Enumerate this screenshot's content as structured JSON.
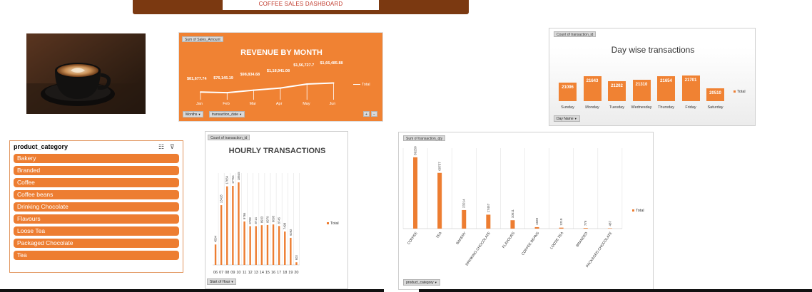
{
  "header": {
    "title": "COFFEE  SALES  DASHBOARD"
  },
  "revenue": {
    "field_tag": "Sum of Sales_Amount",
    "title": "REVENUE BY MONTH",
    "legend": "Total",
    "filter_months": "Months",
    "filter_date": "transaction_date",
    "btn_plus": "+",
    "btn_minus": "−"
  },
  "daywise": {
    "field_tag": "Count of transaction_id",
    "title": "Day wise transactions",
    "legend": "Total",
    "filter": "Day Name"
  },
  "slicer": {
    "title": "product_category",
    "items": [
      "Bakery",
      "Branded",
      "Coffee",
      "Coffee beans",
      "Drinking Chocolate",
      "Flavours",
      "Loose Tea",
      "Packaged Chocolate",
      "Tea"
    ]
  },
  "hourly": {
    "field_tag": "Count of transaction_id",
    "title": "HOURLY TRANSACTIONS",
    "legend": "Total",
    "filter": "Start of Hour"
  },
  "qty": {
    "field_tag": "Sum of transaction_qty",
    "legend": "Total",
    "filter": "product_category"
  },
  "colors": {
    "accent": "#ED7D31",
    "header": "#7B3911",
    "revenue_bg": "#F08233"
  },
  "chart_data": [
    {
      "type": "line",
      "title": "REVENUE BY MONTH",
      "categories": [
        "Jan",
        "Feb",
        "Mar",
        "Apr",
        "May",
        "Jun"
      ],
      "values": [
        81677.74,
        76145.19,
        98834.68,
        118941.08,
        156727.7,
        166485.88
      ],
      "labels": [
        "$81,677.74",
        "$76,145.19",
        "$98,834.68",
        "$1,18,941.08",
        "$1,56,727.7",
        "$1,66,485.88"
      ],
      "series_name": "Total"
    },
    {
      "type": "bar",
      "title": "Day wise transactions",
      "categories": [
        "Sunday",
        "Monday",
        "Tuesday",
        "Wednesday",
        "Thursday",
        "Friday",
        "Saturday"
      ],
      "values": [
        21096,
        21643,
        21202,
        21310,
        21654,
        21701,
        20510
      ],
      "series_name": "Total"
    },
    {
      "type": "bar",
      "title": "HOURLY TRANSACTIONS",
      "categories": [
        "06",
        "07",
        "08",
        "09",
        "10",
        "11",
        "12",
        "13",
        "14",
        "15",
        "16",
        "17",
        "18",
        "19",
        "20"
      ],
      "values": [
        4594,
        13428,
        17654,
        17764,
        18545,
        9766,
        8708,
        8714,
        8933,
        8979,
        9093,
        8745,
        7498,
        6092,
        603
      ],
      "series_name": "Total",
      "xlabel": "Start of Hour"
    },
    {
      "type": "bar",
      "title": "",
      "categories": [
        "COFFEE",
        "TEA",
        "BAKERY",
        "DRINKING CHOCOLATE",
        "FLAVOURS",
        "COFFEE BEANS",
        "LOOSE TEA",
        "BRANDED",
        "PACKAGED CHOCOLATE"
      ],
      "values": [
        89250,
        69737,
        23214,
        17457,
        10511,
        1828,
        1210,
        776,
        487
      ],
      "series_name": "Total",
      "xlabel": "product_category"
    }
  ]
}
